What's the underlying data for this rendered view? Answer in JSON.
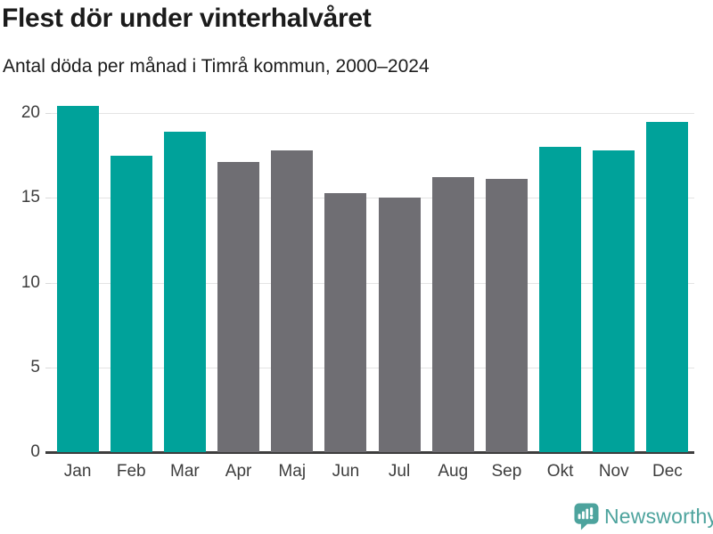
{
  "chart_data": {
    "type": "bar",
    "title": "Flest dör under vinterhalvåret",
    "subtitle": "Antal döda per månad i Timrå kommun, 2000–2024",
    "categories": [
      "Jan",
      "Feb",
      "Mar",
      "Apr",
      "Maj",
      "Jun",
      "Jul",
      "Aug",
      "Sep",
      "Okt",
      "Nov",
      "Dec"
    ],
    "values": [
      20.4,
      17.5,
      18.9,
      17.1,
      17.8,
      15.3,
      15.0,
      16.2,
      16.1,
      18.0,
      17.8,
      19.5
    ],
    "bar_colors": [
      "highlight",
      "highlight",
      "highlight",
      "neutral",
      "neutral",
      "neutral",
      "neutral",
      "neutral",
      "neutral",
      "highlight",
      "highlight",
      "highlight"
    ],
    "colors": {
      "highlight": "#00a29a",
      "neutral": "#6f6e73"
    },
    "xlabel": "",
    "ylabel": "",
    "ylim": [
      0,
      20
    ],
    "yticks": [
      0,
      5,
      10,
      15,
      20
    ],
    "grid": true,
    "legend": "none"
  },
  "branding": {
    "logo_text": "Newsworthy",
    "logo_icon": "newsworthy-speech-bubble-bar-chart-icon",
    "logo_color": "#4da39d"
  }
}
